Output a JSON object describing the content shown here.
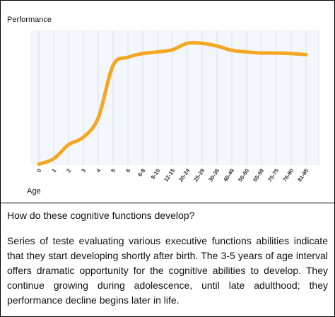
{
  "chart_data": {
    "type": "line",
    "title": "",
    "ylabel": "Performance",
    "xlabel": "Age",
    "categories": [
      "0",
      "1",
      "2",
      "3",
      "4",
      "5",
      "6",
      "6-8",
      "9-10",
      "12-15",
      "20-24",
      "25-29",
      "30-35",
      "40-49",
      "50-60",
      "65-69",
      "70-75",
      "76-80",
      "81-85"
    ],
    "series": [
      {
        "values": [
          2,
          12,
          38,
          52,
          88,
          185,
          200,
          207,
          210,
          214,
          226,
          226,
          221,
          213,
          210,
          208,
          208,
          207,
          205
        ]
      }
    ],
    "ylim": [
      0,
      250
    ],
    "grid": "vertical",
    "colors": {
      "line": "#f5a623",
      "grid": "#d7e2ef",
      "plot_bg": "#f3f7fb"
    }
  },
  "text": {
    "question": "How do these cognitive functions develop?",
    "paragraph": "Series of teste evaluating various executive functions abilities indicate that they start developing shortly after birth. The 3-5 years of age interval offers dramatic opportunity for the cognitive abilities to develop. They continue growing during adolescence, until late adulthood; they performance decline begins later in life."
  }
}
